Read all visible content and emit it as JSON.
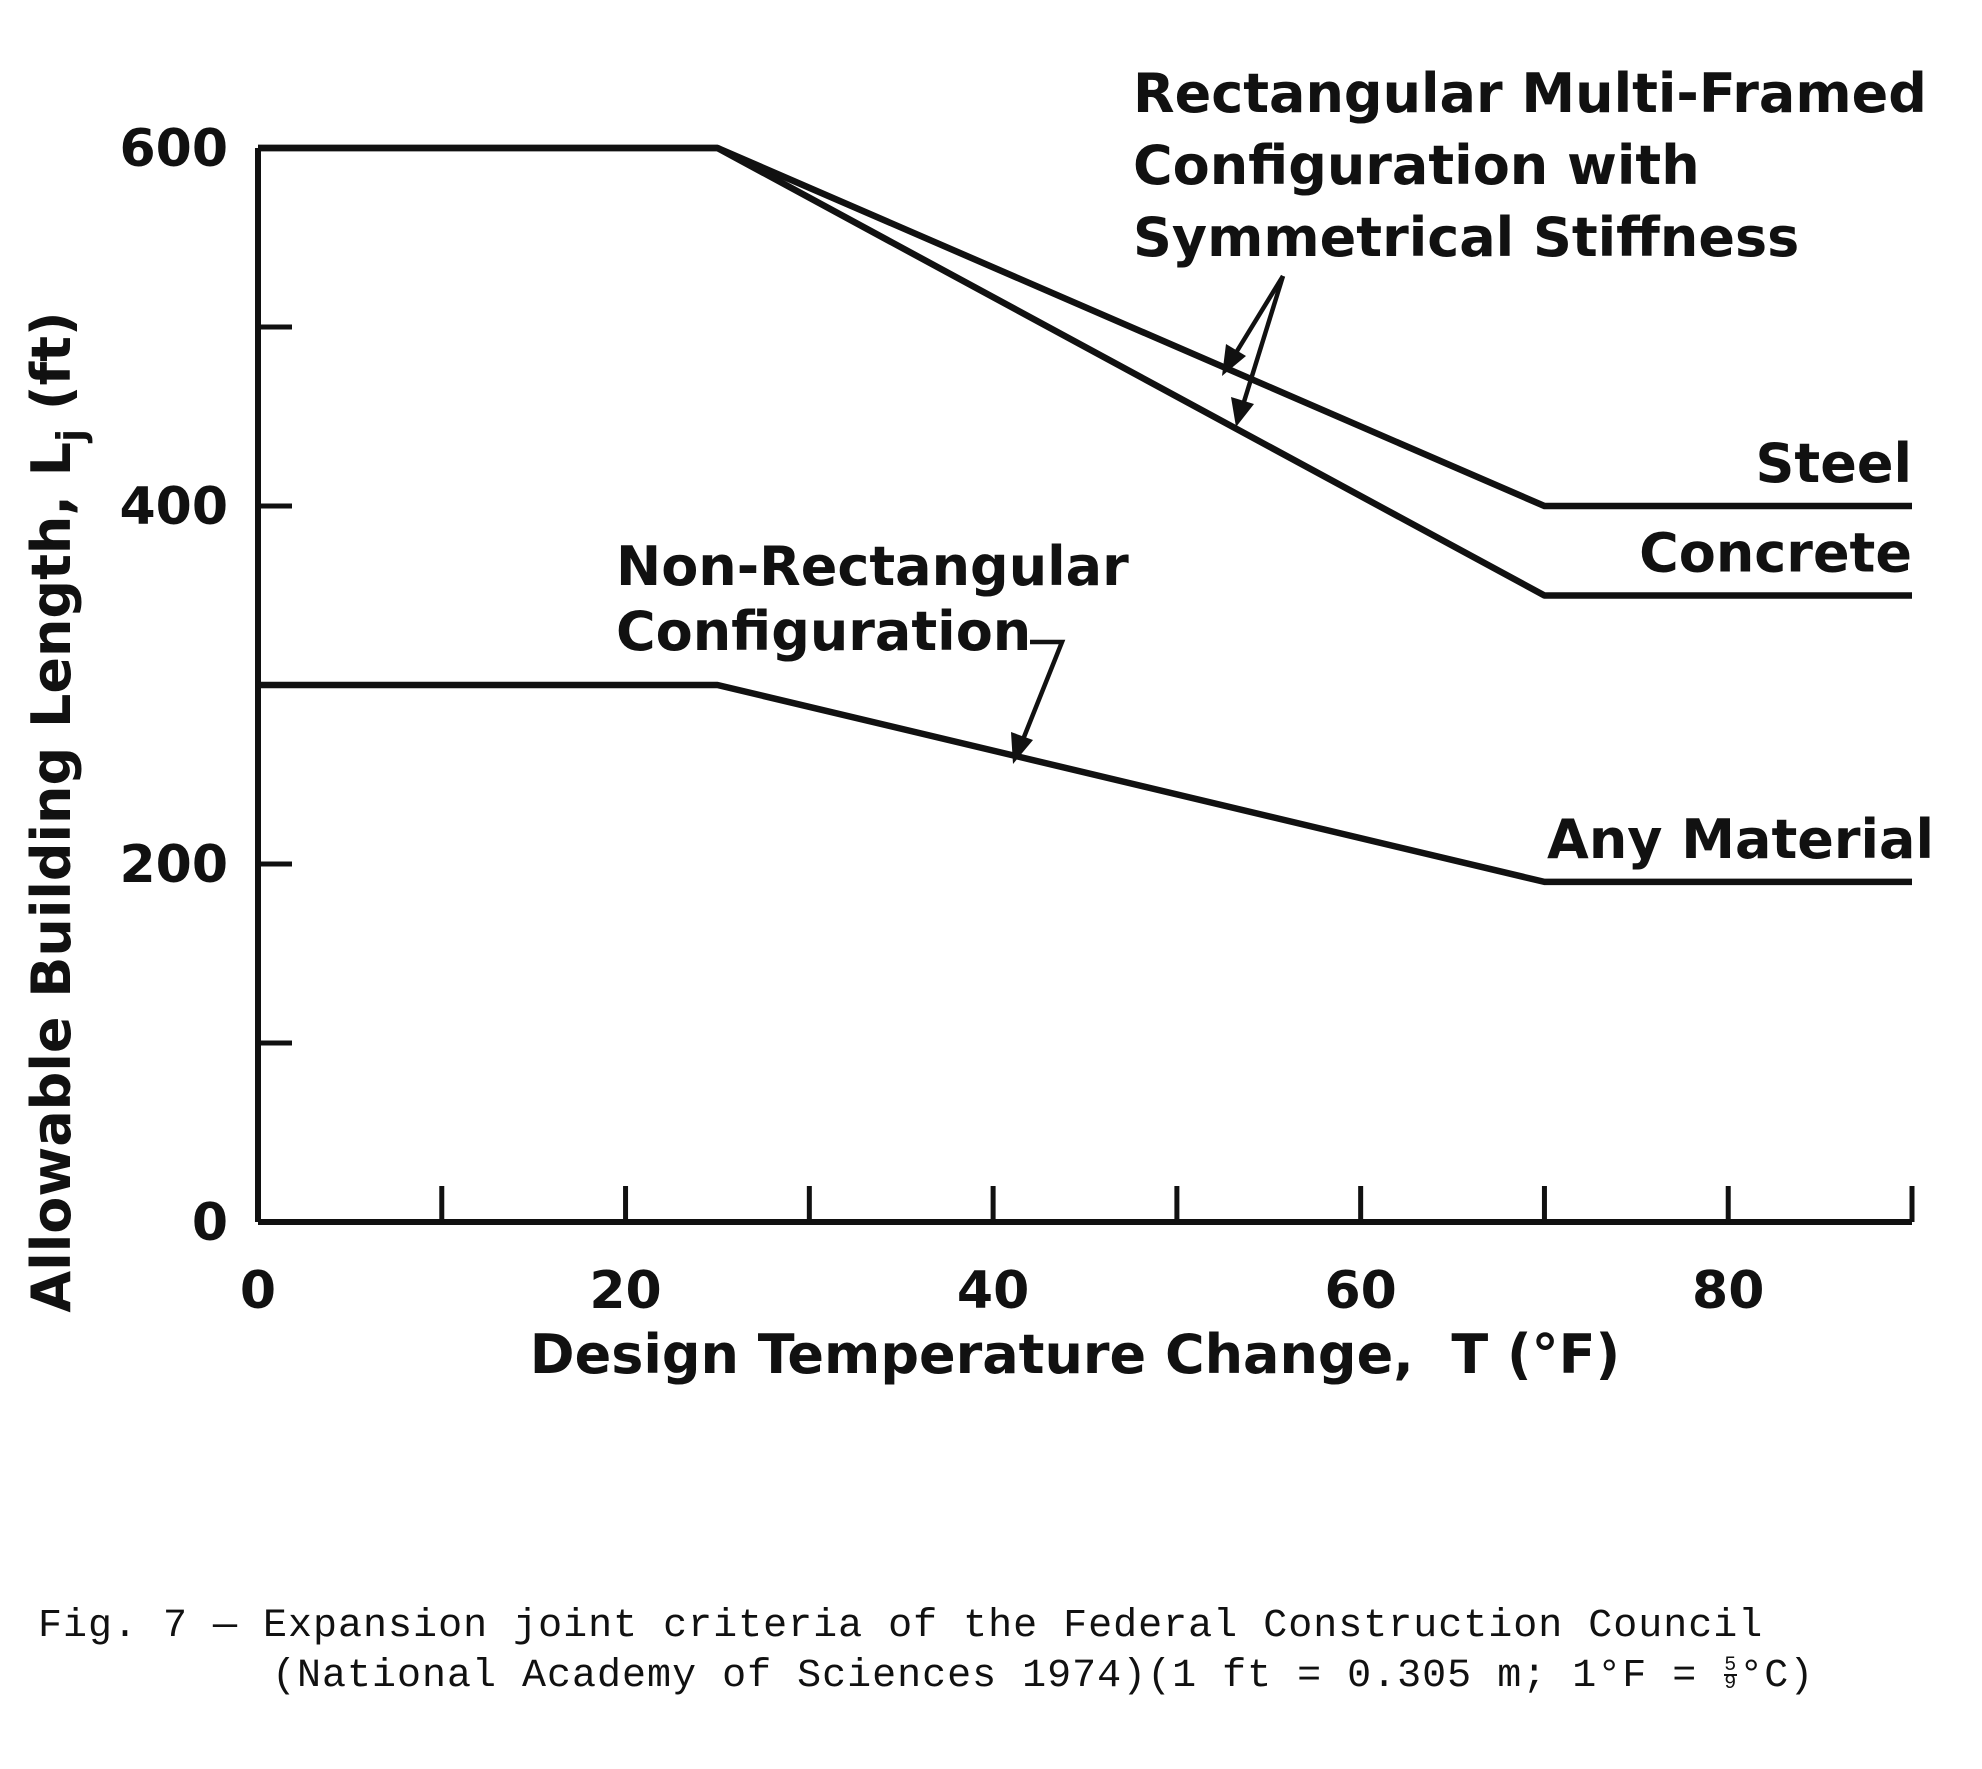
{
  "chart_data": {
    "type": "line",
    "xlabel": "Design Temperature Change,  T (°F)",
    "ylabel": "Allowable Building Length, L",
    "ylabel_subscript": "j",
    "ylabel_unit": " (ft)",
    "xlim": [
      0,
      90
    ],
    "ylim": [
      0,
      600
    ],
    "x_ticks": [
      0,
      20,
      40,
      60,
      80
    ],
    "y_ticks": [
      0,
      200,
      400,
      600
    ],
    "x_minor_ticks": [
      10,
      30,
      50,
      70,
      90
    ],
    "y_minor_ticks": [
      100,
      300,
      500
    ],
    "grid": false,
    "series": [
      {
        "name": "Steel",
        "x": [
          0,
          25,
          70,
          90
        ],
        "y": [
          600,
          600,
          400,
          400
        ]
      },
      {
        "name": "Concrete",
        "x": [
          0,
          25,
          70,
          90
        ],
        "y": [
          600,
          600,
          350,
          350
        ]
      },
      {
        "name": "Any Material",
        "x": [
          0,
          25,
          70,
          90
        ],
        "y": [
          300,
          300,
          190,
          190
        ]
      }
    ],
    "annotations": [
      {
        "lines": [
          "Rectangular Multi-Framed",
          "Configuration with",
          "Symmetrical Stiffness"
        ]
      },
      {
        "lines": [
          "Non-Rectangular",
          "Configuration"
        ]
      }
    ]
  },
  "caption": {
    "line1": "Fig. 7 — Expansion joint criteria of the Federal Construction Council",
    "line2": "(National Academy of Sciences 1974)(1 ft = 0.305 m; 1°F = ",
    "line2_fraction_num": "5",
    "line2_fraction_den": "9",
    "line2_end": "°C)"
  }
}
